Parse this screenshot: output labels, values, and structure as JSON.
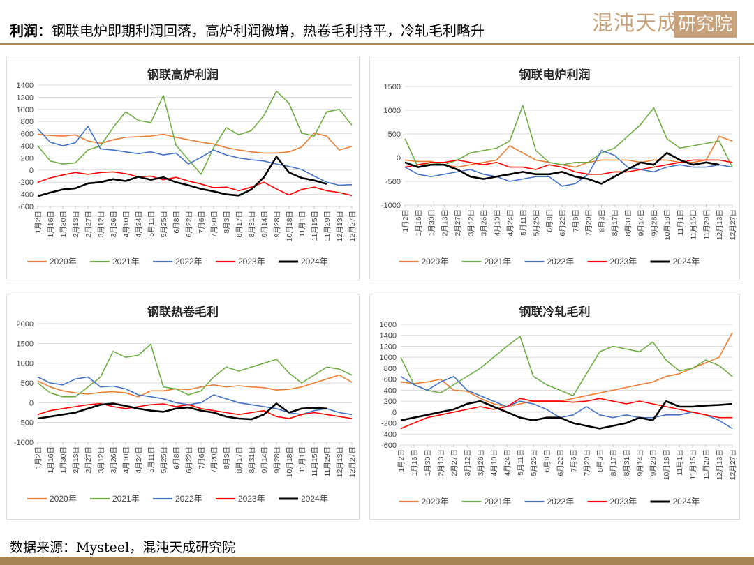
{
  "header": {
    "title_label": "利润",
    "title_sep": "：",
    "title_text": "钢联电炉即期利润回落，高炉利润微增，热卷毛利持平，冷轧毛利略升",
    "logo_text": "混沌天成",
    "logo_box_text": "研究院"
  },
  "footer": {
    "source": "数据来源：Mysteel，混沌天成研究院"
  },
  "colors": {
    "2020年": "#ed7d31",
    "2021年": "#70ad47",
    "2022年": "#4472c4",
    "2023年": "#ff0000",
    "2024年": "#000000",
    "accent": "#b08a5a"
  },
  "chart_data": [
    {
      "id": "bf",
      "type": "line",
      "title": "钢联高炉利润",
      "x_ticks": [
        "1月2日",
        "1月16日",
        "1月30日",
        "2月13日",
        "2月27日",
        "3月12日",
        "3月26日",
        "4月10日",
        "4月24日",
        "5月11日",
        "5月25日",
        "6月8日",
        "6月22日",
        "7月6日",
        "7月20日",
        "8月3日",
        "8月17日",
        "8月31日",
        "9月14日",
        "9月28日",
        "10月18日",
        "11月1日",
        "11月15日",
        "11月29日",
        "12月13日",
        "12月27日"
      ],
      "ylim": [
        -600,
        1400
      ],
      "y_ticks": [
        -600,
        -400,
        -200,
        0,
        200,
        400,
        600,
        800,
        1000,
        1200,
        1400
      ],
      "legend_position": "bottom",
      "series": [
        {
          "name": "2020年",
          "values": [
            590,
            570,
            560,
            580,
            480,
            440,
            500,
            540,
            550,
            560,
            590,
            540,
            500,
            460,
            430,
            370,
            330,
            300,
            280,
            280,
            300,
            380,
            610,
            560,
            330,
            390
          ]
        },
        {
          "name": "2021年",
          "values": [
            400,
            150,
            100,
            120,
            330,
            400,
            700,
            960,
            820,
            780,
            1230,
            410,
            170,
            -70,
            370,
            700,
            580,
            650,
            900,
            1300,
            1100,
            610,
            560,
            960,
            1000,
            740
          ]
        },
        {
          "name": "2022年",
          "values": [
            680,
            460,
            400,
            450,
            720,
            350,
            330,
            300,
            270,
            300,
            250,
            280,
            100,
            210,
            330,
            250,
            200,
            170,
            150,
            100,
            60,
            10,
            -100,
            -200,
            -250,
            -240
          ]
        },
        {
          "name": "2023年",
          "values": [
            -200,
            -130,
            -80,
            -40,
            -70,
            -40,
            -30,
            -60,
            -110,
            -100,
            -160,
            -120,
            -180,
            -230,
            -290,
            -280,
            -340,
            -280,
            -200,
            -310,
            -410,
            -320,
            -280,
            -340,
            -370,
            -420
          ]
        },
        {
          "name": "2024年",
          "values": [
            -430,
            -370,
            -320,
            -300,
            -220,
            -200,
            -150,
            -180,
            -110,
            -160,
            -120,
            -200,
            -250,
            -310,
            -350,
            -400,
            -420,
            -320,
            -120,
            220,
            -40,
            -130,
            -170,
            -230
          ]
        }
      ]
    },
    {
      "id": "eaf",
      "type": "line",
      "title": "钢联电炉利润",
      "x_ticks": [
        "1月2日",
        "1月16日",
        "1月30日",
        "2月13日",
        "2月27日",
        "3月12日",
        "3月26日",
        "4月10日",
        "4月24日",
        "5月11日",
        "5月25日",
        "6月8日",
        "6月22日",
        "7月6日",
        "7月20日",
        "8月3日",
        "8月17日",
        "8月31日",
        "9月14日",
        "9月28日",
        "10月18日",
        "11月1日",
        "11月15日",
        "11月29日",
        "12月13日",
        "12月27日"
      ],
      "ylim": [
        -1000,
        1500
      ],
      "y_ticks": [
        -1000,
        -500,
        0,
        500,
        1000,
        1500
      ],
      "legend_position": "bottom",
      "series": [
        {
          "name": "2020年",
          "values": [
            -50,
            -80,
            -80,
            -150,
            -200,
            -150,
            -100,
            -50,
            250,
            100,
            -50,
            -100,
            -150,
            -200,
            -100,
            -50,
            -50,
            -50,
            -100,
            -50,
            -50,
            -100,
            -100,
            -50,
            450,
            350
          ]
        },
        {
          "name": "2021年",
          "values": [
            400,
            -200,
            -100,
            -150,
            -50,
            100,
            150,
            200,
            350,
            1100,
            150,
            -100,
            -150,
            -100,
            -100,
            100,
            200,
            450,
            700,
            1050,
            400,
            200,
            250,
            300,
            350,
            -200
          ]
        },
        {
          "name": "2022年",
          "values": [
            -200,
            -350,
            -400,
            -350,
            -300,
            -250,
            -350,
            -400,
            -500,
            -450,
            -400,
            -400,
            -600,
            -550,
            -350,
            150,
            50,
            -200,
            -250,
            -300,
            -200,
            -150,
            -200,
            -200,
            -150,
            -200
          ]
        },
        {
          "name": "2023年",
          "values": [
            -200,
            -150,
            -100,
            -100,
            -50,
            -100,
            -150,
            -100,
            -200,
            -200,
            -250,
            -150,
            -200,
            -300,
            -350,
            -350,
            -300,
            -300,
            -250,
            -200,
            -150,
            -100,
            -50,
            -50,
            -50,
            -100
          ]
        },
        {
          "name": "2024年",
          "values": [
            -100,
            -200,
            -150,
            -150,
            -250,
            -400,
            -450,
            -400,
            -350,
            -300,
            -350,
            -350,
            -300,
            -400,
            -450,
            -550,
            -400,
            -250,
            -100,
            -150,
            100,
            -50,
            -150,
            -100,
            -150
          ]
        }
      ]
    },
    {
      "id": "hrc",
      "type": "line",
      "title": "钢联热卷毛利",
      "x_ticks": [
        "1月2日",
        "1月16日",
        "1月30日",
        "2月13日",
        "2月27日",
        "3月12日",
        "3月26日",
        "4月10日",
        "4月24日",
        "5月11日",
        "5月25日",
        "6月8日",
        "6月22日",
        "7月6日",
        "7月20日",
        "8月3日",
        "8月17日",
        "8月31日",
        "9月14日",
        "9月28日",
        "10月18日",
        "11月1日",
        "11月15日",
        "11月29日",
        "12月13日",
        "12月27日"
      ],
      "ylim": [
        -1000,
        2000
      ],
      "y_ticks": [
        -1000,
        -500,
        0,
        500,
        1000,
        1500,
        2000
      ],
      "legend_position": "bottom",
      "series": [
        {
          "name": "2020年",
          "values": [
            550,
            400,
            300,
            250,
            220,
            260,
            280,
            250,
            150,
            300,
            300,
            350,
            330,
            400,
            450,
            400,
            430,
            400,
            380,
            320,
            340,
            400,
            500,
            600,
            700,
            520
          ]
        },
        {
          "name": "2021年",
          "values": [
            500,
            250,
            150,
            150,
            400,
            650,
            1300,
            1150,
            1200,
            1480,
            400,
            350,
            200,
            300,
            650,
            900,
            800,
            900,
            1000,
            1100,
            750,
            500,
            700,
            900,
            850,
            700
          ]
        },
        {
          "name": "2022年",
          "values": [
            650,
            500,
            450,
            600,
            650,
            400,
            420,
            350,
            200,
            150,
            100,
            0,
            -50,
            0,
            200,
            100,
            0,
            -50,
            -100,
            -150,
            -250,
            -300,
            -200,
            -150,
            -250,
            -300
          ]
        },
        {
          "name": "2023年",
          "values": [
            -300,
            -200,
            -150,
            -100,
            -50,
            -20,
            -100,
            -150,
            -100,
            -50,
            -30,
            -100,
            -50,
            -150,
            -200,
            -250,
            -300,
            -250,
            -200,
            -350,
            -400,
            -300,
            -250,
            -300,
            -350,
            -400
          ]
        },
        {
          "name": "2024年",
          "values": [
            -400,
            -350,
            -300,
            -250,
            -150,
            -50,
            -20,
            -80,
            -150,
            -200,
            -230,
            -150,
            -120,
            -200,
            -250,
            -350,
            -400,
            -420,
            -300,
            -20,
            -250,
            -150,
            -130,
            -150
          ]
        }
      ]
    },
    {
      "id": "crc",
      "type": "line",
      "title": "钢联冷轧毛利",
      "x_ticks": [
        "1月2日",
        "1月16日",
        "1月30日",
        "2月13日",
        "2月27日",
        "3月12日",
        "3月26日",
        "4月10日",
        "4月24日",
        "5月11日",
        "5月25日",
        "6月8日",
        "6月22日",
        "7月6日",
        "7月20日",
        "8月3日",
        "8月17日",
        "8月31日",
        "9月14日",
        "9月28日",
        "10月18日",
        "11月1日",
        "11月15日",
        "11月29日",
        "12月13日",
        "12月27日"
      ],
      "ylim": [
        -600,
        1600
      ],
      "y_ticks": [
        -600,
        -400,
        -200,
        0,
        200,
        400,
        600,
        800,
        1000,
        1200,
        1400,
        1600
      ],
      "legend_position": "bottom",
      "series": [
        {
          "name": "2020年",
          "values": [
            550,
            520,
            550,
            600,
            400,
            380,
            250,
            150,
            100,
            150,
            200,
            200,
            200,
            250,
            300,
            350,
            400,
            450,
            500,
            550,
            650,
            700,
            800,
            900,
            1000,
            1450
          ]
        },
        {
          "name": "2021年",
          "values": [
            1000,
            500,
            400,
            350,
            500,
            650,
            800,
            1000,
            1200,
            1380,
            650,
            500,
            400,
            300,
            700,
            1100,
            1200,
            1150,
            1100,
            1280,
            950,
            750,
            800,
            950,
            850,
            650
          ]
        },
        {
          "name": "2022年",
          "values": [
            650,
            500,
            400,
            550,
            650,
            400,
            300,
            200,
            100,
            200,
            150,
            50,
            -100,
            -50,
            100,
            -50,
            -100,
            -50,
            -100,
            -100,
            -50,
            -50,
            0,
            -50,
            -150,
            -300
          ]
        },
        {
          "name": "2023年",
          "values": [
            -300,
            -200,
            -100,
            -50,
            0,
            50,
            100,
            50,
            100,
            250,
            200,
            200,
            200,
            180,
            200,
            250,
            200,
            150,
            200,
            150,
            100,
            50,
            0,
            -50,
            -100,
            -100
          ]
        },
        {
          "name": "2024年",
          "values": [
            -150,
            -100,
            -50,
            0,
            50,
            150,
            200,
            100,
            0,
            -100,
            -150,
            -100,
            -100,
            -200,
            -250,
            -300,
            -250,
            -200,
            -100,
            -150,
            200,
            100,
            100,
            120,
            130,
            150
          ]
        }
      ]
    }
  ]
}
